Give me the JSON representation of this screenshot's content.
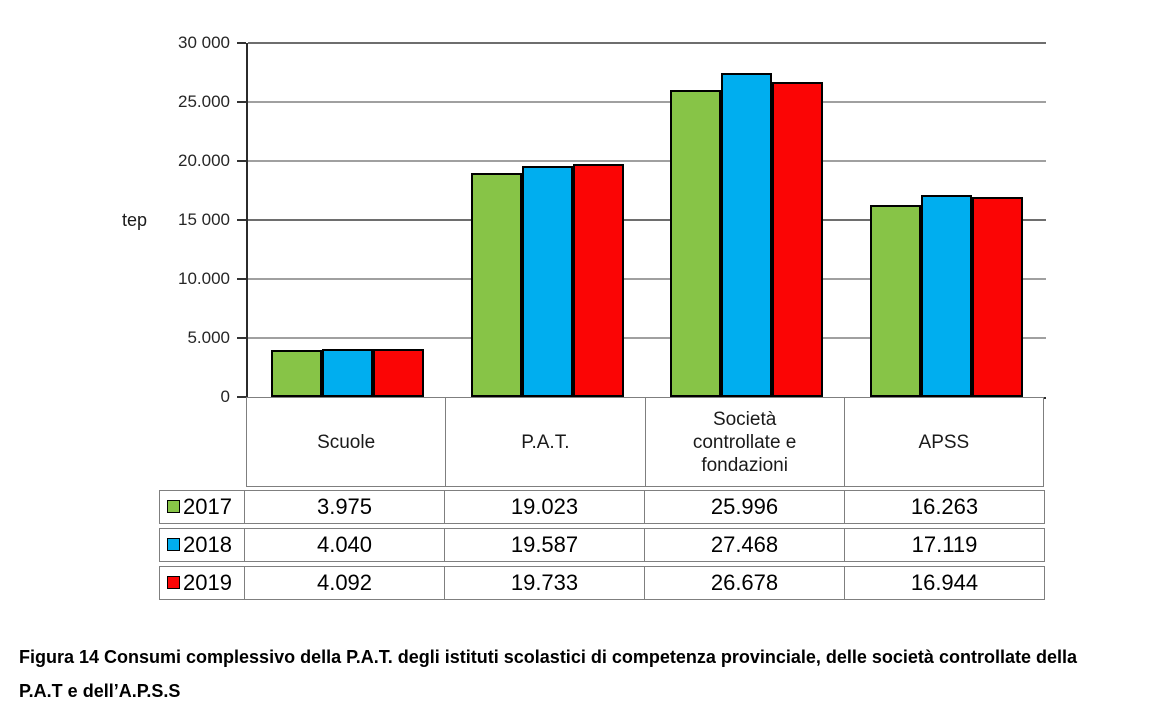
{
  "figure": {
    "caption": "Figura 14 Consumi complessivo della P.A.T. degli istituti scolastici di competenza provinciale, delle società controllate della P.A.T e dell’A.P.S.S"
  },
  "chart_data": {
    "type": "bar",
    "title": "",
    "xlabel": "",
    "ylabel": "tep",
    "ylim": [
      0,
      30000
    ],
    "grid": true,
    "gridline_interval": 5000,
    "major_gridline_interval": 15000,
    "legend_position": "table-rows-left",
    "y_ticks": [
      {
        "label": "30 000",
        "value": 30000
      },
      {
        "label": "25.000",
        "value": 25000
      },
      {
        "label": "20.000",
        "value": 20000
      },
      {
        "label": "15 000",
        "value": 15000
      },
      {
        "label": "10.000",
        "value": 10000
      },
      {
        "label": "5.000",
        "value": 5000
      },
      {
        "label": "0",
        "value": 0
      }
    ],
    "categories": [
      "Scuole",
      "P.A.T.",
      "Società controllate e fondazioni",
      "APSS"
    ],
    "series": [
      {
        "name": "2017",
        "color": "#87C447",
        "values": [
          3975,
          19023,
          25996,
          16263
        ],
        "labels": [
          "3.975",
          "19.023",
          "25.996",
          "16.263"
        ]
      },
      {
        "name": "2018",
        "color": "#00AEEF",
        "values": [
          4040,
          19587,
          27468,
          17119
        ],
        "labels": [
          "4.040",
          "19.587",
          "27.468",
          "17.119"
        ]
      },
      {
        "name": "2019",
        "color": "#FB0505",
        "values": [
          4092,
          19733,
          26678,
          16944
        ],
        "labels": [
          "4.092",
          "19.733",
          "26.678",
          "16.944"
        ]
      }
    ],
    "bar_outline_color": "#000000",
    "table_border_color": "#7F7F7F"
  }
}
